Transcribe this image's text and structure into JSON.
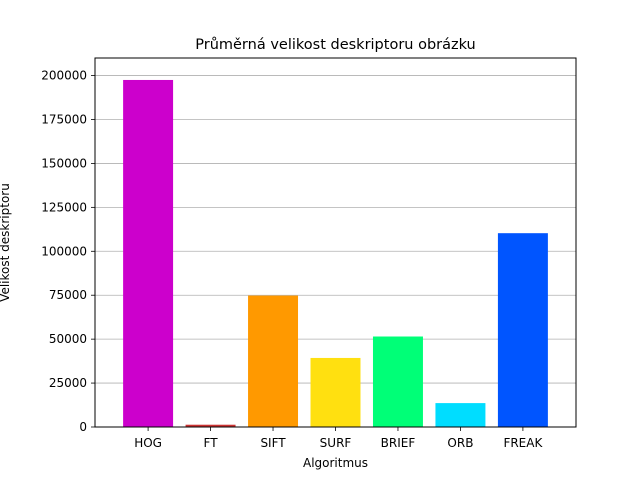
{
  "chart_data": {
    "type": "bar",
    "title": "Průměrná velikost deskriptoru obrázku",
    "xlabel": "Algoritmus",
    "ylabel": "Velikost deskriptoru",
    "categories": [
      "HOG",
      "FT",
      "SIFT",
      "SURF",
      "BRIEF",
      "ORB",
      "FREAK"
    ],
    "values": [
      197500,
      1300,
      74800,
      39300,
      51500,
      13600,
      110300
    ],
    "colors": [
      "#cc00cc",
      "#cc3333",
      "#ff9900",
      "#ffe010",
      "#00ff77",
      "#00ddff",
      "#0055ff"
    ],
    "ylim": [
      0,
      210000
    ],
    "yticks": [
      0,
      25000,
      50000,
      75000,
      100000,
      125000,
      150000,
      175000,
      200000
    ],
    "grid": "y"
  }
}
